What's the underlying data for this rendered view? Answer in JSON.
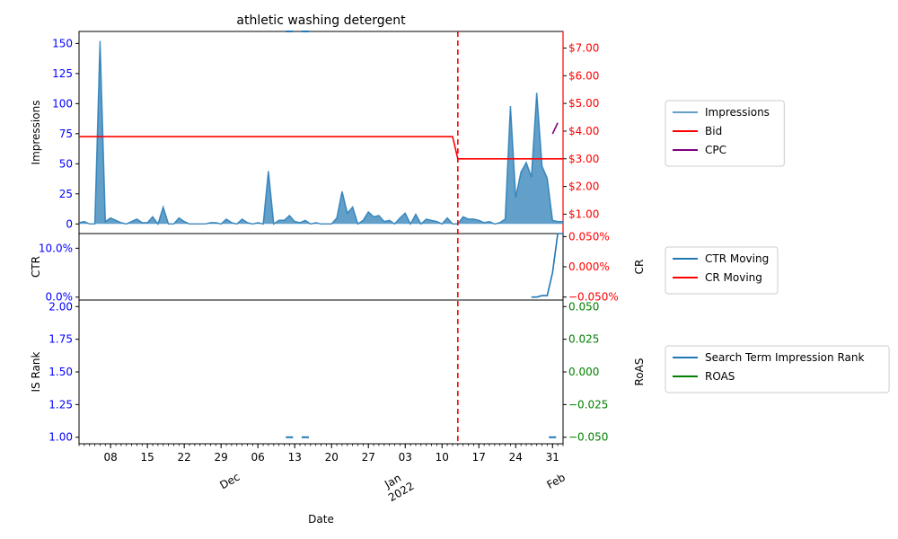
{
  "chart_data": {
    "type": "line",
    "title": "athletic washing detergent",
    "xlabel": "Date",
    "x_range": [
      "2021-11-02",
      "2022-02-02"
    ],
    "x_ticks": [
      {
        "date": "2021-11-08",
        "label": "08"
      },
      {
        "date": "2021-11-15",
        "label": "15"
      },
      {
        "date": "2021-11-22",
        "label": "22"
      },
      {
        "date": "2021-11-29",
        "label": "29"
      },
      {
        "date": "2021-12-06",
        "label": "06"
      },
      {
        "date": "2021-12-13",
        "label": "13"
      },
      {
        "date": "2021-12-20",
        "label": "20"
      },
      {
        "date": "2021-12-27",
        "label": "27"
      },
      {
        "date": "2022-01-03",
        "label": "03"
      },
      {
        "date": "2022-01-10",
        "label": "10"
      },
      {
        "date": "2022-01-17",
        "label": "17"
      },
      {
        "date": "2022-01-24",
        "label": "24"
      },
      {
        "date": "2022-01-31",
        "label": "31"
      }
    ],
    "month_labels": [
      {
        "date": "2021-12-01",
        "label": "Dec"
      },
      {
        "date": "2022-01-01",
        "label": "Jan",
        "sublabel": "2022"
      },
      {
        "date": "2022-02-01",
        "label": "Feb"
      }
    ],
    "marker_date": "2022-01-13",
    "panels": [
      {
        "id": "top",
        "left_axis": {
          "label": "Impressions",
          "ylim": [
            -8,
            160
          ],
          "ticks": [
            0,
            25,
            50,
            75,
            100,
            125,
            150
          ],
          "tick_labels": [
            "0",
            "25",
            "50",
            "75",
            "100",
            "125",
            "150"
          ],
          "color": "#0000ff"
        },
        "right_axis": {
          "label": "",
          "ylim": [
            0.3,
            7.6
          ],
          "ticks": [
            1,
            2,
            3,
            4,
            5,
            6,
            7
          ],
          "tick_labels": [
            "$1.00",
            "$2.00",
            "$3.00",
            "$4.00",
            "$5.00",
            "$6.00",
            "$7.00"
          ],
          "color": "#ff0000"
        },
        "legend": [
          "Impressions",
          "Bid",
          "CPC"
        ]
      },
      {
        "id": "mid",
        "left_axis": {
          "label": "CTR",
          "ylim": [
            -0.006,
            0.13
          ],
          "ticks": [
            0,
            0.1
          ],
          "tick_labels": [
            "0.0%",
            "10.0%"
          ],
          "color": "#0000ff"
        },
        "right_axis": {
          "label": "CR",
          "ylim": [
            -0.055,
            0.055
          ],
          "ticks": [
            -0.05,
            0,
            0.05
          ],
          "tick_labels": [
            "−0.050%",
            "0.000%",
            "0.050%"
          ],
          "color": "#ff0000"
        },
        "legend": [
          "CTR Moving",
          "CR Moving"
        ]
      },
      {
        "id": "bot",
        "left_axis": {
          "label": "IS Rank",
          "ylim": [
            0.95,
            2.05
          ],
          "ticks": [
            1,
            1.25,
            1.5,
            1.75,
            2
          ],
          "tick_labels": [
            "1.00",
            "1.25",
            "1.50",
            "1.75",
            "2.00"
          ],
          "color": "#0000ff"
        },
        "right_axis": {
          "label": "RoAS",
          "ylim": [
            -0.055,
            0.055
          ],
          "ticks": [
            -0.05,
            -0.025,
            0,
            0.025,
            0.05
          ],
          "tick_labels": [
            "−0.050",
            "−0.025",
            "0.000",
            "0.025",
            "0.050"
          ],
          "color": "#008000"
        },
        "legend": [
          "Search Term Impression Rank",
          "ROAS"
        ]
      }
    ],
    "series": [
      {
        "name": "Impressions",
        "panel": "top",
        "axis": "left",
        "style": "area",
        "color": "#1f77b4",
        "x": [
          "2021-11-02",
          "2021-11-03",
          "2021-11-04",
          "2021-11-05",
          "2021-11-06",
          "2021-11-07",
          "2021-11-08",
          "2021-11-09",
          "2021-11-10",
          "2021-11-11",
          "2021-11-12",
          "2021-11-13",
          "2021-11-14",
          "2021-11-15",
          "2021-11-16",
          "2021-11-17",
          "2021-11-18",
          "2021-11-19",
          "2021-11-20",
          "2021-11-21",
          "2021-11-22",
          "2021-11-23",
          "2021-11-24",
          "2021-11-25",
          "2021-11-26",
          "2021-11-27",
          "2021-11-28",
          "2021-11-29",
          "2021-11-30",
          "2021-12-01",
          "2021-12-02",
          "2021-12-03",
          "2021-12-04",
          "2021-12-05",
          "2021-12-06",
          "2021-12-07",
          "2021-12-08",
          "2021-12-09",
          "2021-12-10",
          "2021-12-11",
          "2021-12-12",
          "2021-12-13",
          "2021-12-14",
          "2021-12-15",
          "2021-12-16",
          "2021-12-17",
          "2021-12-18",
          "2021-12-19",
          "2021-12-20",
          "2021-12-21",
          "2021-12-22",
          "2021-12-23",
          "2021-12-24",
          "2021-12-25",
          "2021-12-26",
          "2021-12-27",
          "2021-12-28",
          "2021-12-29",
          "2021-12-30",
          "2021-12-31",
          "2022-01-01",
          "2022-01-02",
          "2022-01-03",
          "2022-01-04",
          "2022-01-05",
          "2022-01-06",
          "2022-01-07",
          "2022-01-08",
          "2022-01-09",
          "2022-01-10",
          "2022-01-11",
          "2022-01-12",
          "2022-01-13",
          "2022-01-14",
          "2022-01-15",
          "2022-01-16",
          "2022-01-17",
          "2022-01-18",
          "2022-01-19",
          "2022-01-20",
          "2022-01-21",
          "2022-01-22",
          "2022-01-23",
          "2022-01-24",
          "2022-01-25",
          "2022-01-26",
          "2022-01-27",
          "2022-01-28",
          "2022-01-29",
          "2022-01-30",
          "2022-01-31",
          "2022-02-01",
          "2022-02-02"
        ],
        "values": [
          1,
          2,
          0,
          0,
          152,
          2,
          5,
          3,
          1,
          0,
          2,
          4,
          1,
          1,
          6,
          0,
          14,
          0,
          0,
          5,
          2,
          0,
          0,
          0,
          0,
          1,
          1,
          0,
          4,
          1,
          0,
          4,
          1,
          0,
          1,
          0,
          44,
          0,
          3,
          3,
          7,
          2,
          1,
          3,
          0,
          1,
          0,
          0,
          0,
          5,
          27,
          9,
          14,
          0,
          3,
          10,
          6,
          7,
          2,
          3,
          0,
          5,
          9,
          0,
          8,
          0,
          4,
          3,
          2,
          0,
          5,
          0,
          0,
          6,
          4,
          4,
          3,
          1,
          2,
          0,
          1,
          4,
          98,
          22,
          43,
          51,
          39,
          109,
          48,
          38,
          3,
          2,
          2
        ]
      },
      {
        "name": "Bid",
        "panel": "top",
        "axis": "right",
        "style": "line",
        "color": "#ff0000",
        "x": [
          "2021-11-02",
          "2022-01-12",
          "2022-01-13",
          "2022-02-02"
        ],
        "values": [
          3.8,
          3.8,
          3.0,
          3.0
        ]
      },
      {
        "name": "CPC",
        "panel": "top",
        "axis": "right",
        "style": "line",
        "color": "#800080",
        "x": [
          "2022-01-31",
          "2022-02-01"
        ],
        "values": [
          3.9,
          4.3
        ]
      },
      {
        "name": "CTR Moving",
        "panel": "mid",
        "axis": "left",
        "style": "line",
        "color": "#1f77b4",
        "x": [
          "2022-01-27",
          "2022-01-28",
          "2022-01-29",
          "2022-01-30",
          "2022-01-31",
          "2022-02-01",
          "2022-02-02"
        ],
        "values": [
          0,
          0,
          0.003,
          0.003,
          0.05,
          0.13,
          0.13
        ]
      },
      {
        "name": "CR Moving",
        "panel": "mid",
        "axis": "right",
        "style": "line",
        "color": "#ff0000",
        "x": [],
        "values": []
      },
      {
        "name": "Search Term Impression Rank",
        "panel": "bot",
        "axis": "left",
        "style": "dash-segments",
        "color": "#1f77b4",
        "x": [
          "2021-12-12",
          "2021-12-15",
          "2022-01-31"
        ],
        "values": [
          1,
          1,
          1
        ]
      },
      {
        "name": "Impressions (top overflow)",
        "panel": "top",
        "axis": "left",
        "style": "dash-segments",
        "color": "#1f77b4",
        "x": [
          "2021-12-12",
          "2021-12-15"
        ],
        "values": [
          160,
          160
        ]
      },
      {
        "name": "ROAS",
        "panel": "bot",
        "axis": "right",
        "style": "line",
        "color": "#008000",
        "x": [],
        "values": []
      }
    ]
  }
}
